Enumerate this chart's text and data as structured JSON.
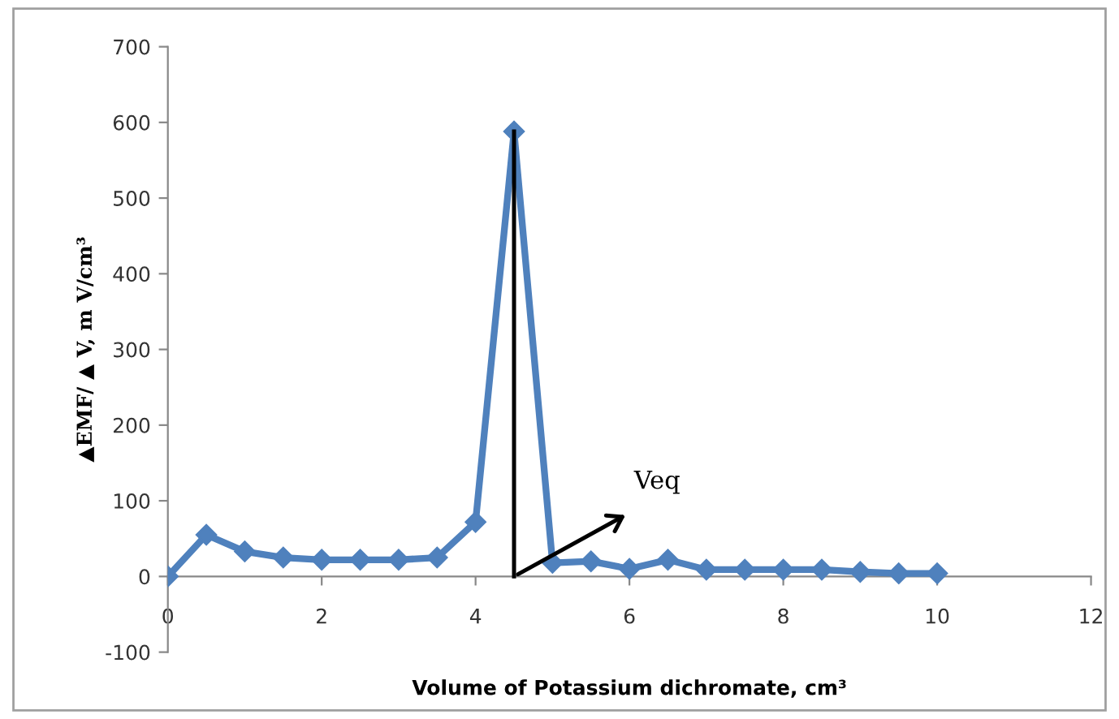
{
  "chart_data": {
    "type": "line",
    "xlabel": "Volume of Potassium dichromate, cm³",
    "ylabel": "▲EMF/ ▲ V, m V/cm³",
    "x": [
      0,
      0.5,
      1,
      1.5,
      2,
      2.5,
      3,
      3.5,
      4,
      4.5,
      5,
      5.5,
      6,
      6.5,
      7,
      7.5,
      8,
      8.5,
      9,
      9.5,
      10
    ],
    "series": [
      {
        "color": "#4f81bd",
        "values": [
          0,
          55,
          33,
          25,
          22,
          22,
          22,
          25,
          72,
          588,
          18,
          20,
          10,
          22,
          9,
          9,
          9,
          9,
          6,
          4,
          4
        ]
      }
    ],
    "marker": "diamond",
    "line_style": "solid",
    "grid": false,
    "legend": false,
    "xlim": [
      0,
      12
    ],
    "xticks": [
      0,
      2,
      4,
      6,
      8,
      10,
      12
    ],
    "ylim": [
      -100,
      700
    ],
    "yticks": [
      -100,
      0,
      100,
      200,
      300,
      400,
      500,
      600,
      700
    ],
    "ref_lines": [
      {
        "axis": "x",
        "value": 4.5,
        "color": "#000000",
        "label": "Veq"
      }
    ]
  }
}
